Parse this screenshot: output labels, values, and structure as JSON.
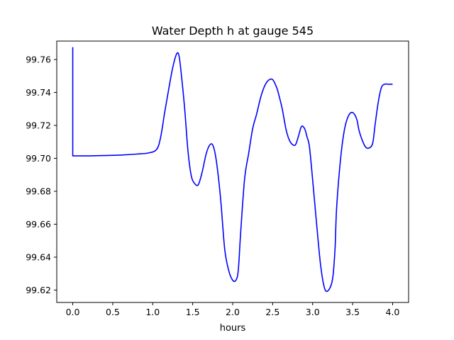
{
  "chart_data": {
    "type": "line",
    "title": "Water Depth h at gauge 545",
    "xlabel": "hours",
    "ylabel": "",
    "xlim": [
      -0.2,
      4.2
    ],
    "ylim": [
      99.6125,
      99.7712
    ],
    "grid": false,
    "x_ticks": [
      "0.0",
      "0.5",
      "1.0",
      "1.5",
      "2.0",
      "2.5",
      "3.0",
      "3.5",
      "4.0"
    ],
    "y_ticks": [
      "99.62",
      "99.64",
      "99.66",
      "99.68",
      "99.70",
      "99.72",
      "99.74",
      "99.76"
    ],
    "series": [
      {
        "color": "#0000ff",
        "x": [
          0.0,
          0.0,
          0.2,
          0.4,
          0.6,
          0.8,
          0.95,
          1.05,
          1.1,
          1.15,
          1.2,
          1.25,
          1.3,
          1.33,
          1.36,
          1.4,
          1.44,
          1.48,
          1.52,
          1.57,
          1.62,
          1.67,
          1.72,
          1.76,
          1.8,
          1.85,
          1.9,
          1.95,
          2.0,
          2.04,
          2.07,
          2.1,
          2.15,
          2.2,
          2.25,
          2.3,
          2.35,
          2.4,
          2.45,
          2.5,
          2.55,
          2.58,
          2.62,
          2.67,
          2.72,
          2.78,
          2.82,
          2.86,
          2.9,
          2.93,
          2.96,
          3.0,
          3.05,
          3.1,
          3.15,
          3.2,
          3.25,
          3.28,
          3.3,
          3.35,
          3.4,
          3.45,
          3.5,
          3.55,
          3.58,
          3.62,
          3.66,
          3.7,
          3.75,
          3.78,
          3.82,
          3.86,
          3.9,
          3.95,
          4.0
        ],
        "y": [
          99.7675,
          99.7015,
          99.7015,
          99.7017,
          99.702,
          99.7026,
          99.7033,
          99.7055,
          99.713,
          99.728,
          99.742,
          99.755,
          99.7635,
          99.762,
          99.75,
          99.73,
          99.705,
          99.69,
          99.685,
          99.684,
          99.692,
          99.703,
          99.7085,
          99.707,
          99.697,
          99.675,
          99.645,
          99.632,
          99.626,
          99.626,
          99.632,
          99.655,
          99.688,
          99.703,
          99.718,
          99.727,
          99.737,
          99.744,
          99.7475,
          99.7478,
          99.743,
          99.738,
          99.73,
          99.717,
          99.71,
          99.708,
          99.713,
          99.7193,
          99.718,
          99.713,
          99.707,
          99.687,
          99.66,
          99.635,
          99.621,
          99.62,
          99.627,
          99.645,
          99.67,
          99.7,
          99.718,
          99.726,
          99.7278,
          99.724,
          99.717,
          99.711,
          99.707,
          99.7062,
          99.709,
          99.72,
          99.734,
          99.743,
          99.745,
          99.745,
          99.745
        ]
      }
    ]
  }
}
